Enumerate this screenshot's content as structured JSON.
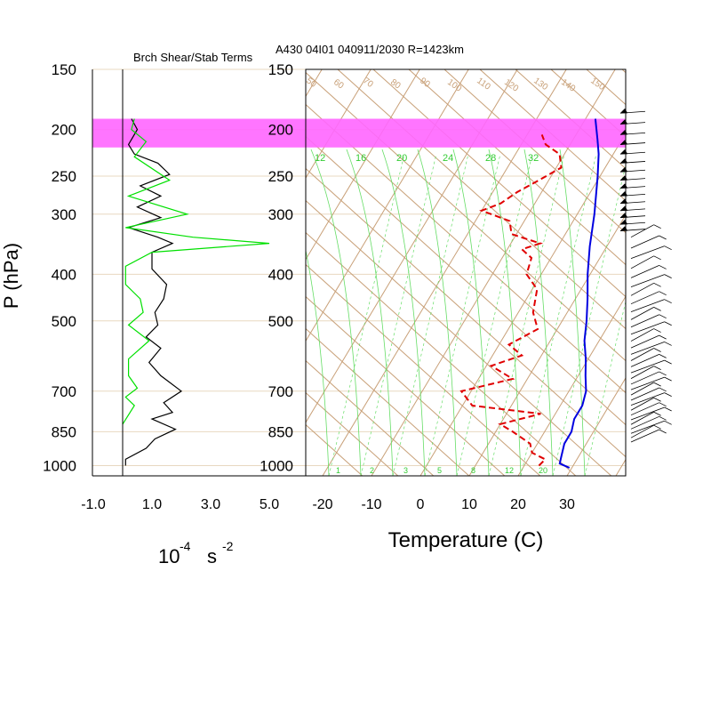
{
  "header": {
    "left_title": "Brch Shear/Stab Terms",
    "right_title": "A430 04I01 040911/2030 R=1423km"
  },
  "pressure_axis": {
    "label": "P (hPa)",
    "levels": [
      150,
      200,
      250,
      300,
      400,
      500,
      700,
      850,
      1000
    ],
    "tick_labels": [
      "150",
      "200",
      "250",
      "300",
      "400",
      "500",
      "700",
      "850",
      "1000"
    ]
  },
  "left_panel": {
    "xlabel_base": "10",
    "xlabel_exp1": "-4",
    "xlabel_unit": "s",
    "xlabel_exp2": "-2",
    "xticks": [
      -1.0,
      1.0,
      3.0,
      5.0
    ],
    "xtick_labels": [
      "-1.0",
      "1.0",
      "3.0",
      "5.0"
    ]
  },
  "right_panel": {
    "xlabel": "Temperature (C)",
    "xticks": [
      -20,
      -10,
      0,
      10,
      20,
      30
    ],
    "xtick_labels": [
      "-20",
      "-10",
      "0",
      "10",
      "20",
      "30"
    ],
    "mixing_ratio_labels_upper": [
      "12",
      "16",
      "20",
      "24",
      "28",
      "32"
    ],
    "mixing_ratio_labels_lower": [
      "1",
      "2",
      "3",
      "5",
      "8",
      "12",
      "20"
    ],
    "dry_adiabat_labels": [
      "50",
      "60",
      "70",
      "80",
      "90",
      "100",
      "110",
      "120",
      "130",
      "140",
      "150"
    ]
  },
  "colors": {
    "shear_line": "#000000",
    "stability_line": "#00e000",
    "temperature": "#0000e0",
    "dewpoint": "#e00000",
    "highlight_band": "#ff66ff",
    "skewt_grid": "#c8a078",
    "moist_grid": "#66dd66",
    "pressure_grid": "#e8d8c0"
  },
  "chart_data": [
    {
      "type": "line",
      "title": "Brch Shear/Stab Terms",
      "xlabel": "10-4 s -2",
      "ylabel": "P (hPa)",
      "xlim": [
        -1.5,
        5.2
      ],
      "ylim": [
        1050,
        150
      ],
      "y_scale": "log",
      "series": [
        {
          "points": [
            [
              0.3,
              190
            ],
            [
              0.5,
              200
            ],
            [
              0.2,
              215
            ],
            [
              0.4,
              225
            ],
            [
              1.2,
              235
            ],
            [
              1.6,
              248
            ],
            [
              0.6,
              262
            ],
            [
              1.3,
              275
            ],
            [
              0.5,
              290
            ],
            [
              1.3,
              305
            ],
            [
              0.2,
              320
            ],
            [
              1.2,
              335
            ],
            [
              1.7,
              345
            ],
            [
              1.0,
              360
            ],
            [
              1.0,
              390
            ],
            [
              1.5,
              420
            ],
            [
              1.4,
              450
            ],
            [
              1.1,
              480
            ],
            [
              1.2,
              510
            ],
            [
              0.8,
              540
            ],
            [
              1.3,
              570
            ],
            [
              0.9,
              610
            ],
            [
              1.3,
              650
            ],
            [
              2.0,
              700
            ],
            [
              1.4,
              740
            ],
            [
              1.7,
              775
            ],
            [
              1.0,
              800
            ],
            [
              1.8,
              840
            ],
            [
              1.1,
              880
            ],
            [
              0.8,
              920
            ],
            [
              0.1,
              970
            ],
            [
              0.1,
              1000
            ]
          ]
        },
        {
          "points": [
            [
              0.4,
              190
            ],
            [
              0.3,
              200
            ],
            [
              0.8,
              212
            ],
            [
              0.4,
              228
            ],
            [
              1.6,
              255
            ],
            [
              0.2,
              275
            ],
            [
              2.2,
              300
            ],
            [
              0.1,
              320
            ],
            [
              2.4,
              335
            ],
            [
              5.0,
              345
            ],
            [
              1.0,
              360
            ],
            [
              0.1,
              385
            ],
            [
              0.1,
              420
            ],
            [
              0.6,
              450
            ],
            [
              0.7,
              480
            ],
            [
              0.2,
              510
            ],
            [
              0.9,
              550
            ],
            [
              0.2,
              600
            ],
            [
              0.2,
              650
            ],
            [
              0.5,
              690
            ],
            [
              0.1,
              720
            ],
            [
              0.4,
              750
            ],
            [
              0.0,
              820
            ]
          ]
        }
      ]
    },
    {
      "type": "line",
      "title": "A430 04I01 040911/2030 R=1423km",
      "xlabel": "Temperature (C)",
      "ylabel": "P (hPa)",
      "xlim": [
        -23,
        42
      ],
      "ylim": [
        1050,
        150
      ],
      "y_scale": "log",
      "skew": true,
      "highlight_pressure_range": [
        190,
        218
      ],
      "series": [
        {
          "name": "Temperature",
          "points": [
            [
              29.5,
              1010
            ],
            [
              27,
              990
            ],
            [
              26.5,
              960
            ],
            [
              25.5,
              900
            ],
            [
              25.5,
              850
            ],
            [
              24.5,
              800
            ],
            [
              24.5,
              750
            ],
            [
              23.5,
              700
            ],
            [
              21.5,
              650
            ],
            [
              19.5,
              600
            ],
            [
              17,
              550
            ],
            [
              15,
              500
            ],
            [
              12.5,
              450
            ],
            [
              9.5,
              400
            ],
            [
              6.5,
              350
            ],
            [
              3.5,
              300
            ],
            [
              -0.5,
              250
            ],
            [
              -3,
              225
            ],
            [
              -5,
              210
            ],
            [
              -8,
              190
            ]
          ]
        },
        {
          "name": "Dewpoint",
          "points": [
            [
              23,
              1000
            ],
            [
              23.5,
              970
            ],
            [
              20,
              940
            ],
            [
              18.5,
              900
            ],
            [
              13.5,
              850
            ],
            [
              10,
              820
            ],
            [
              17,
              780
            ],
            [
              2,
              750
            ],
            [
              -2,
              700
            ],
            [
              7,
              660
            ],
            [
              1,
              620
            ],
            [
              6,
              590
            ],
            [
              2,
              560
            ],
            [
              6,
              520
            ],
            [
              3,
              480
            ],
            [
              1,
              430
            ],
            [
              -3,
              400
            ],
            [
              -4,
              370
            ],
            [
              -7,
              355
            ],
            [
              -4,
              345
            ],
            [
              -11,
              330
            ],
            [
              -13,
              310
            ],
            [
              -20,
              295
            ],
            [
              -17,
              285
            ],
            [
              -15,
              270
            ],
            [
              -12,
              255
            ],
            [
              -9,
              240
            ],
            [
              -11,
              225
            ],
            [
              -15,
              215
            ],
            [
              -17,
              205
            ]
          ]
        }
      ],
      "wind_barbs": "right margin profile"
    }
  ]
}
